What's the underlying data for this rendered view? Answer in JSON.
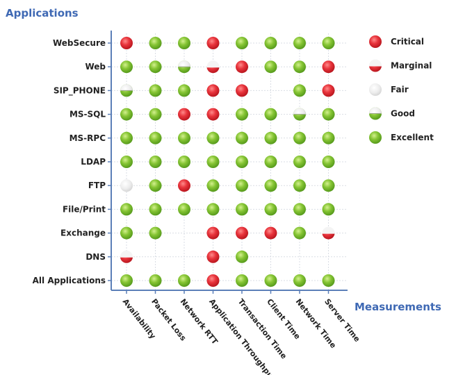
{
  "chart_data": {
    "type": "heatmap",
    "y_axis_title": "Applications",
    "x_axis_title": "Measurements",
    "rows": [
      "WebSecure",
      "Web",
      "SIP_PHONE",
      "MS-SQL",
      "MS-RPC",
      "LDAP",
      "FTP",
      "File/Print",
      "Exchange",
      "DNS",
      "All Applications"
    ],
    "columns": [
      "Availability",
      "Packet Loss",
      "Network RTT",
      "Application Throughput",
      "Transaction Time",
      "Client Time",
      "Network Time",
      "Server Time"
    ],
    "categories": [
      "Critical",
      "Marginal",
      "Fair",
      "Good",
      "Excellent"
    ],
    "status_colors": {
      "Critical": "#e2333a",
      "Marginal": "#e2333a",
      "Fair": "#e6e6e6",
      "Good": "#9ccd4a",
      "Excellent": "#7fbf2e"
    },
    "values": [
      [
        "Critical",
        "Excellent",
        "Excellent",
        "Critical",
        "Excellent",
        "Excellent",
        "Excellent",
        "Excellent"
      ],
      [
        "Excellent",
        "Excellent",
        "Good",
        "Marginal",
        "Critical",
        "Excellent",
        "Excellent",
        "Critical"
      ],
      [
        "Good",
        "Excellent",
        "Excellent",
        "Critical",
        "Critical",
        null,
        "Excellent",
        "Critical"
      ],
      [
        "Excellent",
        "Excellent",
        "Critical",
        "Critical",
        "Excellent",
        "Excellent",
        "Good",
        "Excellent"
      ],
      [
        "Excellent",
        "Excellent",
        "Excellent",
        "Excellent",
        "Excellent",
        "Excellent",
        "Excellent",
        "Excellent"
      ],
      [
        "Excellent",
        "Excellent",
        "Excellent",
        "Excellent",
        "Excellent",
        "Excellent",
        "Excellent",
        "Excellent"
      ],
      [
        "Fair",
        "Excellent",
        "Critical",
        "Excellent",
        "Excellent",
        "Excellent",
        "Excellent",
        "Excellent"
      ],
      [
        "Excellent",
        "Excellent",
        "Excellent",
        "Excellent",
        "Excellent",
        "Excellent",
        "Excellent",
        "Excellent"
      ],
      [
        "Excellent",
        "Excellent",
        null,
        "Critical",
        "Critical",
        "Critical",
        "Excellent",
        "Marginal"
      ],
      [
        "Marginal",
        null,
        null,
        "Critical",
        "Excellent",
        null,
        null,
        null
      ],
      [
        "Excellent",
        "Excellent",
        "Excellent",
        "Critical",
        "Excellent",
        "Excellent",
        "Excellent",
        "Excellent"
      ]
    ],
    "legend_position": "right",
    "grid": true
  }
}
